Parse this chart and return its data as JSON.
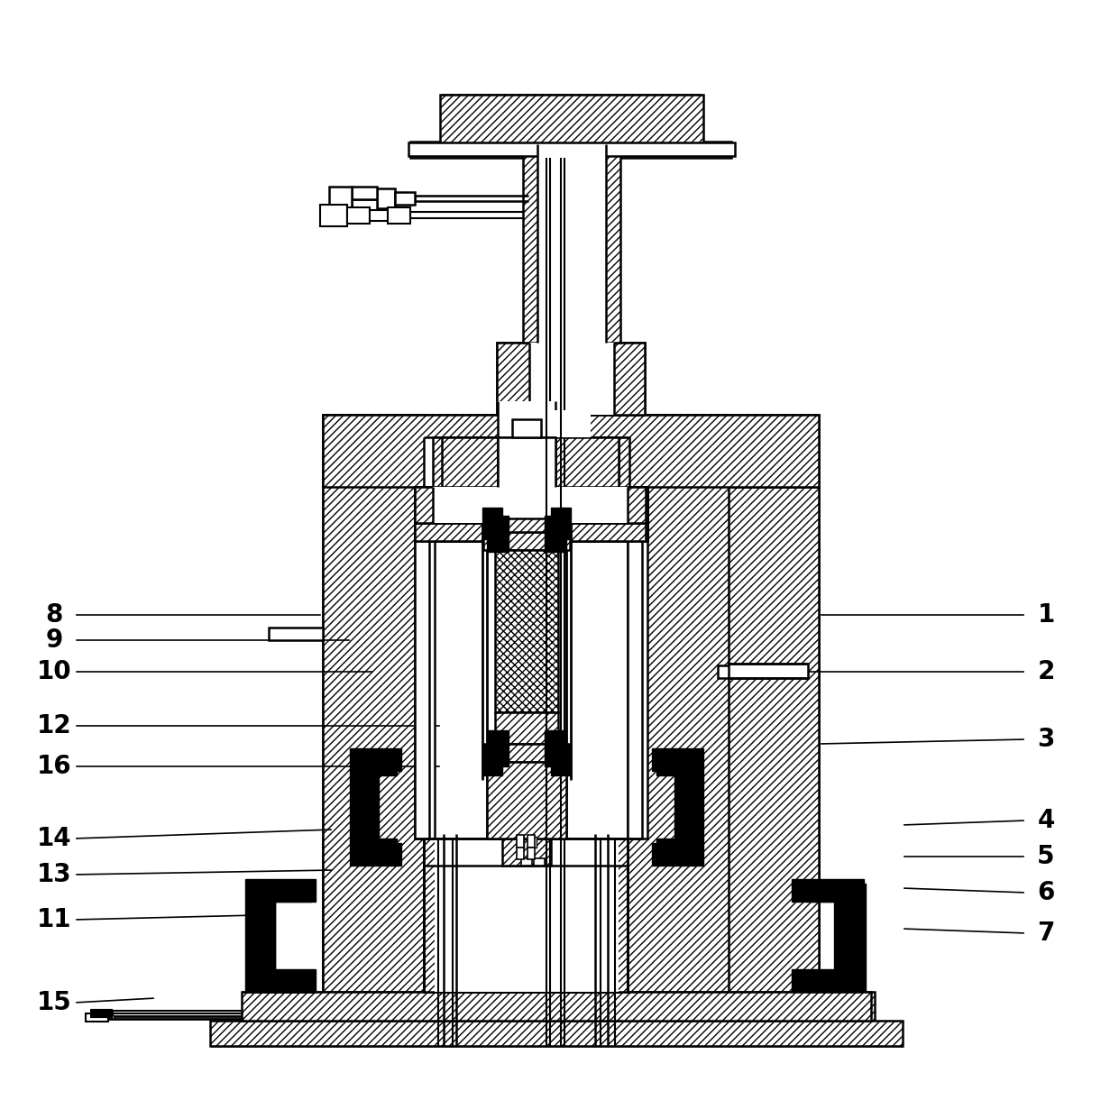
{
  "bg_color": "#ffffff",
  "lw_main": 1.8,
  "lw_thick": 2.5,
  "hatch_density": "////",
  "cross_hatch": "xxxx",
  "label_fontsize": 20,
  "label_fontweight": "bold",
  "left_labels": [
    [
      "8",
      60,
      538,
      358,
      538
    ],
    [
      "9",
      60,
      510,
      390,
      510
    ],
    [
      "10",
      60,
      475,
      415,
      475
    ],
    [
      "12",
      60,
      415,
      490,
      415
    ],
    [
      "16",
      60,
      370,
      490,
      370
    ],
    [
      "14",
      60,
      290,
      370,
      300
    ],
    [
      "13",
      60,
      250,
      370,
      255
    ],
    [
      "11",
      60,
      200,
      285,
      205
    ],
    [
      "15",
      60,
      108,
      173,
      113
    ]
  ],
  "right_labels": [
    [
      "1",
      1160,
      538,
      908,
      538
    ],
    [
      "2",
      1160,
      475,
      820,
      475
    ],
    [
      "3",
      1160,
      400,
      908,
      395
    ],
    [
      "4",
      1160,
      310,
      1000,
      305
    ],
    [
      "5",
      1160,
      270,
      1000,
      270
    ],
    [
      "6",
      1160,
      230,
      1000,
      235
    ],
    [
      "7",
      1160,
      185,
      1000,
      190
    ]
  ]
}
